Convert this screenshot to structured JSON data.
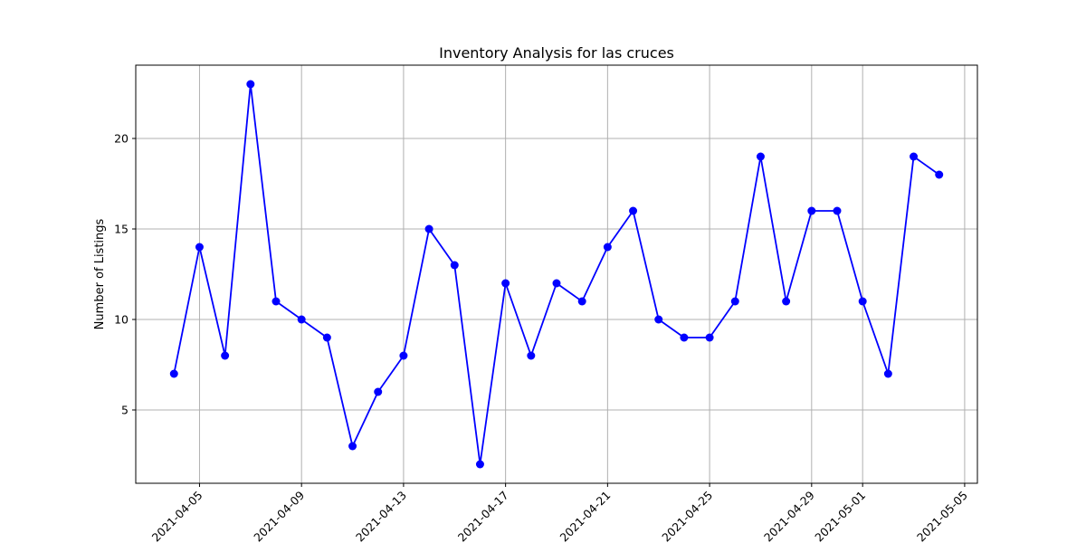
{
  "chart_data": {
    "type": "line",
    "title": "Inventory Analysis for las cruces",
    "xlabel": "",
    "ylabel": "Number of Listings",
    "x": [
      "2021-04-04",
      "2021-04-05",
      "2021-04-06",
      "2021-04-07",
      "2021-04-08",
      "2021-04-09",
      "2021-04-10",
      "2021-04-11",
      "2021-04-12",
      "2021-04-13",
      "2021-04-14",
      "2021-04-15",
      "2021-04-16",
      "2021-04-17",
      "2021-04-18",
      "2021-04-19",
      "2021-04-20",
      "2021-04-21",
      "2021-04-22",
      "2021-04-23",
      "2021-04-24",
      "2021-04-25",
      "2021-04-26",
      "2021-04-27",
      "2021-04-28",
      "2021-04-29",
      "2021-04-30",
      "2021-05-01",
      "2021-05-02",
      "2021-05-03",
      "2021-05-04"
    ],
    "series": [
      {
        "values": [
          7,
          14,
          8,
          23,
          11,
          10,
          9,
          3,
          6,
          8,
          15,
          13,
          2,
          12,
          8,
          12,
          11,
          14,
          16,
          10,
          9,
          9,
          11,
          19,
          11,
          16,
          16,
          11,
          7,
          19,
          18
        ],
        "color": "#0000ff",
        "marker": "circle"
      }
    ],
    "x_ticks": [
      "2021-04-05",
      "2021-04-09",
      "2021-04-13",
      "2021-04-17",
      "2021-04-21",
      "2021-04-25",
      "2021-04-29",
      "2021-05-01",
      "2021-05-05"
    ],
    "y_ticks": [
      5,
      10,
      15,
      20
    ],
    "xlim": [
      "2021-04-02T12:00",
      "2021-05-05T12:00"
    ],
    "ylim": [
      0.95,
      24.05
    ],
    "grid": true
  }
}
